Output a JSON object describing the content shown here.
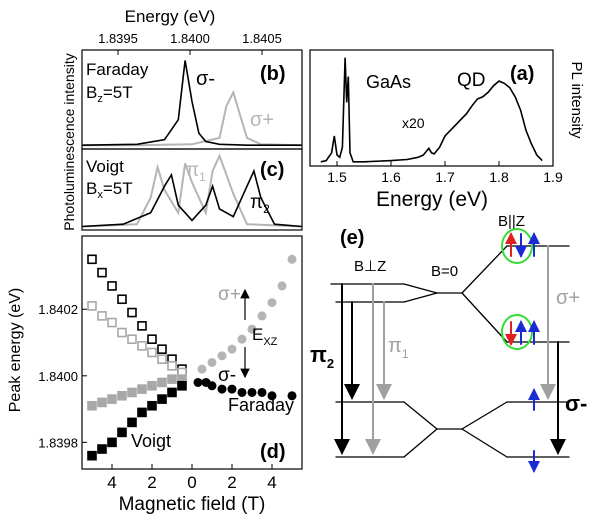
{
  "panel_a": {
    "letter": "(a)",
    "xlabel": "Energy (eV)",
    "ylabel": "PL intensity",
    "xticks": [
      "1.5",
      "1.6",
      "1.7",
      "1.8",
      "1.9"
    ],
    "labels": {
      "gaas": "GaAs",
      "qd": "QD",
      "x20": "x20"
    },
    "chart_data": {
      "type": "line",
      "xlim": [
        1.45,
        1.9
      ],
      "series": [
        {
          "x": [
            1.47,
            1.48,
            1.49,
            1.495,
            1.5,
            1.505,
            1.51,
            1.515,
            1.518,
            1.521,
            1.524,
            1.53,
            1.55,
            1.6,
            1.63,
            1.65,
            1.66,
            1.67,
            1.675,
            1.68,
            1.69,
            1.7,
            1.72,
            1.74,
            1.75,
            1.76,
            1.77,
            1.78,
            1.79,
            1.8,
            1.81,
            1.82,
            1.83,
            1.84,
            1.85,
            1.86,
            1.87,
            1.88
          ],
          "y": [
            0.02,
            0.03,
            0.1,
            0.25,
            0.08,
            0.06,
            0.15,
            0.95,
            0.55,
            0.78,
            0.1,
            0.02,
            0.02,
            0.03,
            0.04,
            0.06,
            0.08,
            0.14,
            0.1,
            0.09,
            0.15,
            0.25,
            0.35,
            0.45,
            0.52,
            0.58,
            0.6,
            0.64,
            0.7,
            0.74,
            0.72,
            0.68,
            0.6,
            0.48,
            0.3,
            0.18,
            0.08,
            0.03
          ]
        }
      ]
    }
  },
  "panel_b": {
    "letter": "(b)",
    "title": "Energy (eV)",
    "xticks": [
      "1.8395",
      "1.8400",
      "1.8405"
    ],
    "mode_line1": "Faraday",
    "mode_line2": "B",
    "mode_sub": "z",
    "mode_val": "=5T",
    "sigma_minus": "σ-",
    "sigma_plus": "σ+",
    "chart_data": {
      "type": "line",
      "xlim": [
        1.8392,
        1.8408
      ],
      "series": [
        {
          "name": "σ-",
          "color": "#000000",
          "x": [
            1.8392,
            1.8396,
            1.8398,
            1.8399,
            1.83995,
            1.84,
            1.84005,
            1.8401,
            1.8402,
            1.8404,
            1.8408
          ],
          "y": [
            0.02,
            0.03,
            0.08,
            0.3,
            0.95,
            0.5,
            0.15,
            0.06,
            0.03,
            0.02,
            0.02
          ]
        },
        {
          "name": "σ+",
          "color": "#b5b5b5",
          "x": [
            1.8392,
            1.8396,
            1.84,
            1.8402,
            1.84025,
            1.8403,
            1.84035,
            1.8404,
            1.8405,
            1.8408
          ],
          "y": [
            0.02,
            0.02,
            0.03,
            0.1,
            0.45,
            0.6,
            0.35,
            0.1,
            0.03,
            0.02
          ]
        }
      ]
    }
  },
  "panel_c": {
    "letter": "(c)",
    "mode_line1": "Voigt",
    "mode_line2": "B",
    "mode_sub": "x",
    "mode_val": "=5T",
    "pi1": "π",
    "pi1_sub": "1",
    "pi2": "π",
    "pi2_sub": "2",
    "ylabel": "Photoluminescence intensity",
    "chart_data": {
      "type": "line",
      "series": [
        {
          "name": "π2",
          "color": "#000000",
          "x": [
            1.8392,
            1.8395,
            1.8397,
            1.8398,
            1.83985,
            1.8399,
            1.84,
            1.8401,
            1.84015,
            1.8402,
            1.8403,
            1.8404,
            1.84045,
            1.8405,
            1.8406,
            1.8408
          ],
          "y": [
            0.02,
            0.05,
            0.2,
            0.55,
            0.7,
            0.3,
            0.1,
            0.3,
            0.55,
            0.25,
            0.15,
            0.55,
            0.75,
            0.4,
            0.05,
            0.02
          ]
        },
        {
          "name": "π1",
          "color": "#b5b5b5",
          "x": [
            1.8392,
            1.8396,
            1.8397,
            1.83975,
            1.8398,
            1.8399,
            1.83995,
            1.84,
            1.8401,
            1.84015,
            1.8402,
            1.8403,
            1.8404,
            1.8408
          ],
          "y": [
            0.02,
            0.05,
            0.4,
            0.8,
            0.5,
            0.2,
            0.85,
            0.6,
            0.2,
            0.75,
            0.95,
            0.45,
            0.05,
            0.02
          ]
        }
      ]
    }
  },
  "panel_d": {
    "letter": "(d)",
    "xlabel": "Magnetic field (T)",
    "ylabel": "Peak energy (eV)",
    "xticks": [
      "4",
      "2",
      "0",
      "2",
      "4"
    ],
    "yticks": [
      "1.8398",
      "1.8400",
      "1.8402"
    ],
    "voigt": "Voigt",
    "faraday": "Faraday",
    "sigma_plus": "σ+",
    "sigma_minus": "σ-",
    "exz": "E",
    "exz_sub": "XZ",
    "chart_data": {
      "type": "scatter",
      "xlim": [
        -5.5,
        5.5
      ],
      "ylim": [
        1.83972,
        1.84042
      ],
      "series": [
        {
          "name": "Voigt outer upper",
          "marker": "open-square",
          "color": "#000000",
          "x": [
            -5,
            -4.5,
            -4,
            -3.5,
            -3,
            -2.5,
            -2,
            -1.5,
            -1,
            -0.5
          ],
          "y": [
            1.84035,
            1.84031,
            1.84027,
            1.84023,
            1.84019,
            1.84015,
            1.84011,
            1.84008,
            1.84005,
            1.84002
          ]
        },
        {
          "name": "Voigt inner upper",
          "marker": "open-square",
          "color": "#a8a8a8",
          "x": [
            -5,
            -4.5,
            -4,
            -3.5,
            -3,
            -2.5,
            -2,
            -1.5,
            -1,
            -0.5
          ],
          "y": [
            1.84021,
            1.84018,
            1.84016,
            1.84013,
            1.84011,
            1.84009,
            1.84007,
            1.84005,
            1.84003,
            1.84001
          ]
        },
        {
          "name": "Voigt inner lower",
          "marker": "filled-square",
          "color": "#a8a8a8",
          "x": [
            -5,
            -4.5,
            -4,
            -3.5,
            -3,
            -2.5,
            -2,
            -1.5,
            -1,
            -0.5
          ],
          "y": [
            1.83991,
            1.83992,
            1.83993,
            1.83994,
            1.83995,
            1.83996,
            1.83997,
            1.83998,
            1.83999,
            1.83999
          ]
        },
        {
          "name": "Voigt outer lower",
          "marker": "filled-square",
          "color": "#000000",
          "x": [
            -5,
            -4.5,
            -4,
            -3.5,
            -3,
            -2.5,
            -2,
            -1.5,
            -1,
            -0.5
          ],
          "y": [
            1.83976,
            1.83978,
            1.8398,
            1.83983,
            1.83986,
            1.83989,
            1.83991,
            1.83993,
            1.83995,
            1.83997
          ]
        },
        {
          "name": "Faraday σ+",
          "marker": "filled-circle",
          "color": "#b5b5b5",
          "x": [
            0.5,
            1,
            1.5,
            2,
            2.5,
            3,
            3.5,
            4,
            4.5,
            5
          ],
          "y": [
            1.84002,
            1.84004,
            1.84006,
            1.84008,
            1.84011,
            1.84014,
            1.84018,
            1.84022,
            1.84027,
            1.84035
          ]
        },
        {
          "name": "Faraday σ-",
          "marker": "filled-circle",
          "color": "#000000",
          "x": [
            0.3,
            0.7,
            1,
            1.5,
            2,
            2.5,
            3,
            3.5,
            4,
            5
          ],
          "y": [
            1.83998,
            1.83998,
            1.83997,
            1.83996,
            1.83996,
            1.83995,
            1.83995,
            1.83995,
            1.83994,
            1.83994
          ]
        }
      ]
    }
  },
  "panel_e": {
    "letter": "(e)",
    "b_perp": "B⊥Z",
    "b_zero": "B=0",
    "b_par": "B||Z",
    "pi1": "π",
    "pi1_sub": "1",
    "pi2": "π",
    "pi2_sub": "2",
    "sigma_plus": "σ+",
    "sigma_minus": "σ-"
  },
  "colors": {
    "black": "#000000",
    "gray": "#a0a0a0",
    "red": "#e02020",
    "blue": "#1a2bd6",
    "green": "#33dd33"
  }
}
